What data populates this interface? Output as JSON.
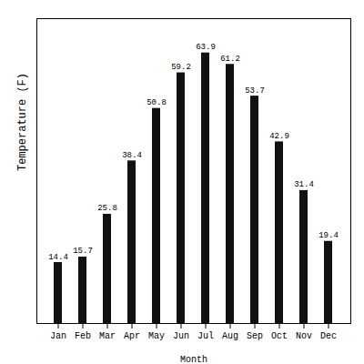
{
  "chart_data": {
    "type": "bar",
    "categories": [
      "Jan",
      "Feb",
      "Mar",
      "Apr",
      "May",
      "Jun",
      "Jul",
      "Aug",
      "Sep",
      "Oct",
      "Nov",
      "Dec"
    ],
    "values": [
      14.4,
      15.7,
      25.8,
      38.4,
      50.8,
      59.2,
      63.9,
      61.2,
      53.7,
      42.9,
      31.4,
      19.4
    ],
    "color": "#111111",
    "xlabel": "Month",
    "ylabel": "Temperature (F)",
    "ylim": [
      0,
      72
    ],
    "grid": false,
    "data_labels": true,
    "tick_labels": "x"
  }
}
